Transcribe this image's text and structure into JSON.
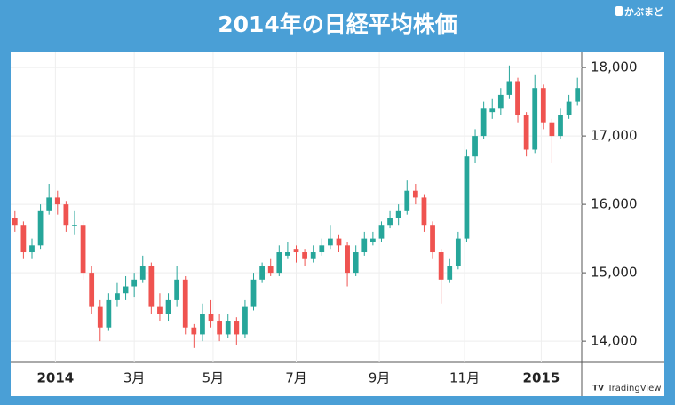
{
  "chart_data": {
    "type": "candlestick",
    "title": "2014年の日経平均株価",
    "x": [
      0,
      4,
      8,
      12,
      16,
      20,
      24,
      28,
      32,
      36,
      40,
      44,
      48,
      52,
      56,
      60,
      64,
      68,
      72,
      76,
      80,
      84,
      88,
      92,
      96,
      100,
      104,
      108,
      112,
      116,
      120,
      124,
      128,
      132,
      136,
      140,
      144,
      148,
      152,
      156,
      160,
      164,
      168,
      172,
      176,
      180,
      184,
      188,
      192,
      196,
      200,
      204,
      208,
      212,
      216,
      220,
      224,
      228,
      232,
      236,
      240,
      244,
      248,
      252,
      256,
      260,
      264
    ],
    "open": [
      15800,
      15700,
      15300,
      15400,
      15900,
      16100,
      16000,
      15700,
      15700,
      15000,
      14500,
      14200,
      14600,
      14700,
      14800,
      14900,
      15100,
      14500,
      14400,
      14600,
      14900,
      14200,
      14100,
      14400,
      14300,
      14100,
      14300,
      14100,
      14500,
      14900,
      15100,
      15000,
      15250,
      15350,
      15300,
      15200,
      15300,
      15400,
      15500,
      15400,
      15000,
      15300,
      15450,
      15500,
      15700,
      15800,
      15900,
      16200,
      16100,
      15700,
      15300,
      14900,
      15100,
      15500,
      16700,
      17000,
      17350,
      17400,
      17600,
      17800,
      17300,
      16800,
      17700,
      17200,
      17000,
      17300,
      17500
    ],
    "high": [
      15900,
      15750,
      15500,
      16000,
      16300,
      16200,
      16050,
      15900,
      15750,
      15100,
      14600,
      14700,
      14850,
      14950,
      15000,
      15250,
      15150,
      14700,
      14700,
      15100,
      14950,
      14250,
      14550,
      14600,
      14400,
      14400,
      14350,
      14600,
      15000,
      15150,
      15200,
      15400,
      15450,
      15400,
      15350,
      15400,
      15500,
      15700,
      15550,
      15450,
      15400,
      15600,
      15600,
      15750,
      15900,
      16000,
      16350,
      16300,
      16150,
      15750,
      15350,
      15200,
      15600,
      16800,
      17100,
      17500,
      17550,
      17700,
      18030,
      17850,
      17350,
      17900,
      17750,
      17250,
      17400,
      17600,
      17850
    ],
    "low": [
      15600,
      15200,
      15200,
      15350,
      15850,
      15850,
      15600,
      15550,
      14900,
      14400,
      14000,
      14150,
      14500,
      14600,
      14650,
      14850,
      14400,
      14300,
      14300,
      14500,
      14100,
      13900,
      14000,
      14200,
      14000,
      14050,
      13950,
      14050,
      14450,
      14850,
      14950,
      14950,
      15200,
      15150,
      15100,
      15150,
      15250,
      15350,
      15300,
      14800,
      14950,
      15250,
      15400,
      15450,
      15650,
      15700,
      15850,
      16000,
      15600,
      15200,
      14550,
      14850,
      15050,
      15450,
      16600,
      16950,
      17250,
      17300,
      17550,
      17200,
      16700,
      16750,
      17100,
      16600,
      16950,
      17250,
      17450
    ],
    "close": [
      15700,
      15300,
      15400,
      15900,
      16100,
      16000,
      15700,
      15700,
      15000,
      14500,
      14200,
      14600,
      14700,
      14800,
      14900,
      15100,
      14500,
      14400,
      14600,
      14900,
      14200,
      14100,
      14400,
      14300,
      14100,
      14300,
      14100,
      14500,
      14900,
      15100,
      15000,
      15300,
      15300,
      15300,
      15200,
      15300,
      15400,
      15500,
      15400,
      15000,
      15300,
      15500,
      15500,
      15700,
      15800,
      15900,
      16200,
      16100,
      15700,
      15300,
      14900,
      15100,
      15500,
      16700,
      17000,
      17400,
      17400,
      17600,
      17800,
      17300,
      16800,
      17700,
      17200,
      17000,
      17300,
      17500,
      17700
    ],
    "up_color": "#26a69a",
    "down_color": "#ef5350",
    "xlim": [
      -2,
      266
    ],
    "xticks": [
      {
        "value": 19,
        "label": "2014"
      },
      {
        "value": 56,
        "label": "3月"
      },
      {
        "value": 93,
        "label": "5月"
      },
      {
        "value": 132,
        "label": "7月"
      },
      {
        "value": 171,
        "label": "9月"
      },
      {
        "value": 211,
        "label": "11月"
      },
      {
        "value": 247,
        "label": "2015"
      }
    ],
    "ylim": [
      13690,
      18235
    ],
    "yticks": [
      {
        "value": 14000,
        "label": "14,000"
      },
      {
        "value": 15000,
        "label": "15,000"
      },
      {
        "value": 16000,
        "label": "16,000"
      },
      {
        "value": 17000,
        "label": "17,000"
      },
      {
        "value": 18000,
        "label": "18,000"
      }
    ],
    "grid": true
  },
  "branding": {
    "site": "かぶまど",
    "source": "TradingView"
  }
}
